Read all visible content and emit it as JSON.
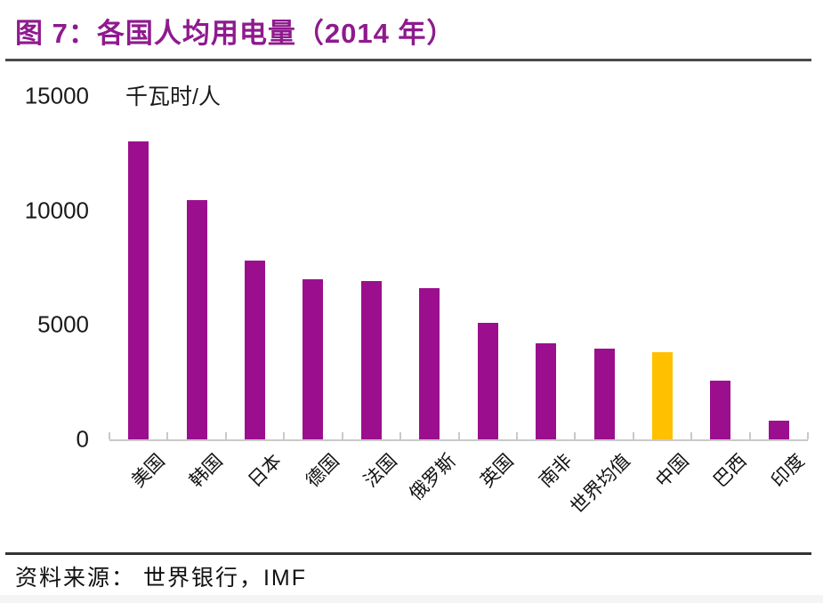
{
  "header": {
    "title": "图 7：各国人均用电量（2014 年）",
    "title_color": "#8E1A8E"
  },
  "footer": {
    "source": "资料来源： 世界银行，IMF"
  },
  "chart_data": {
    "type": "bar",
    "title": "图 7：各国人均用电量（2014 年）",
    "unit_label": "千瓦时/人",
    "categories": [
      "美国",
      "韩国",
      "日本",
      "德国",
      "法国",
      "俄罗斯",
      "英国",
      "南非",
      "世界均值",
      "中国",
      "巴西",
      "印度"
    ],
    "values": [
      13000,
      10450,
      7800,
      7000,
      6900,
      6600,
      5100,
      4200,
      3950,
      3800,
      2550,
      800
    ],
    "ylabel": "千瓦时/人",
    "ylim": [
      0,
      15000
    ],
    "yticks": [
      15000,
      10000,
      5000,
      0
    ],
    "grid": false,
    "legend": "none",
    "bar_color": "#9B0F8E",
    "highlight_category": "中国",
    "highlight_index": 9,
    "highlight_color": "#FFC000",
    "axis_color": "#C9C9C9"
  }
}
